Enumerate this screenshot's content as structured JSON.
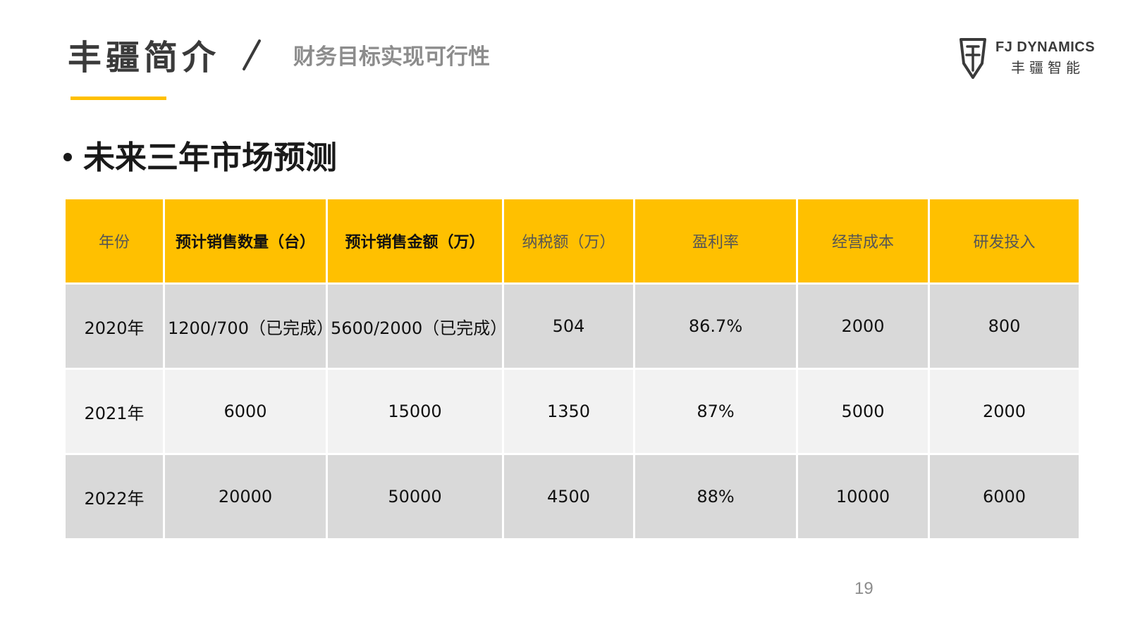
{
  "header": {
    "title": "丰疆简介",
    "subtitle": "财务目标实现可行性"
  },
  "logo": {
    "english_name": "FJ DYNAMICS",
    "chinese_name": "丰疆智能",
    "icon": "shield-logo-icon"
  },
  "section": {
    "heading": "未来三年市场预测"
  },
  "colors": {
    "accent": "#ffc000",
    "row_dark": "#d9d9d9",
    "row_light": "#f2f2f2"
  },
  "table": {
    "headers": [
      "年份",
      "预计销售数量（台）",
      "预计销售金额（万）",
      "纳税额（万）",
      "盈利率",
      "经营成本",
      "研发投入"
    ],
    "rows": [
      [
        "2020年",
        "1200/700（已完成）",
        "5600/2000（已完成）",
        "504",
        "86.7%",
        "2000",
        "800"
      ],
      [
        "2021年",
        "6000",
        "15000",
        "1350",
        "87%",
        "5000",
        "2000"
      ],
      [
        "2022年",
        "20000",
        "50000",
        "4500",
        "88%",
        "10000",
        "6000"
      ]
    ]
  },
  "page_number": "19"
}
